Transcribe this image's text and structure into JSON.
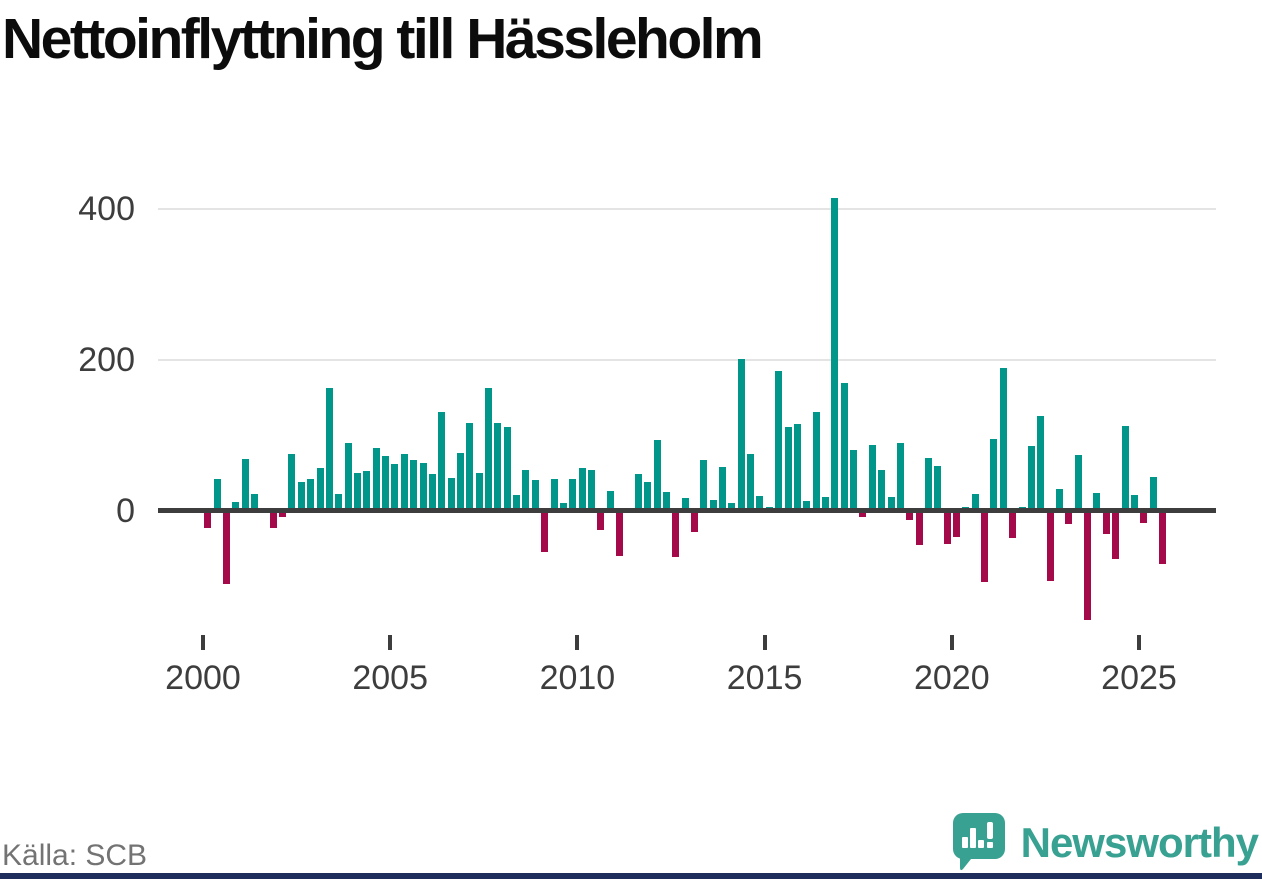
{
  "title": "Nettoinflyttning till Hässleholm",
  "source": {
    "label": "Källa: SCB"
  },
  "branding": {
    "name": "Newsworthy"
  },
  "colors": {
    "positive_bar": "#00968a",
    "negative_bar": "#a40a4a",
    "brand_teal": "#38a191",
    "footer_strip_navy": "#1f2d5c",
    "axis_text": "#3d3d3d",
    "gridline": "#e4e4e4",
    "title_text": "#0c0c0c",
    "source_text": "#737373"
  },
  "chart_data": {
    "type": "bar",
    "title": "Nettoinflyttning till Hässleholm",
    "xlabel": "",
    "ylabel": "",
    "x_unit": "quarter",
    "grid": "horizontal",
    "legend": "none",
    "ylim": [
      -150,
      430
    ],
    "yticks": [
      0,
      200,
      400
    ],
    "xticks": [
      2000,
      2005,
      2010,
      2015,
      2020,
      2025
    ],
    "positive_color": "#00968a",
    "negative_color": "#a40a4a",
    "values_by_year": [
      {
        "year": 2000,
        "q": [
          -22,
          43,
          -96,
          12
        ]
      },
      {
        "year": 2001,
        "q": [
          69,
          23,
          4,
          -23
        ]
      },
      {
        "year": 2002,
        "q": [
          -8,
          76,
          39,
          43
        ]
      },
      {
        "year": 2003,
        "q": [
          57,
          163,
          22,
          90
        ]
      },
      {
        "year": 2004,
        "q": [
          51,
          53,
          83,
          73
        ]
      },
      {
        "year": 2005,
        "q": [
          62,
          76,
          68,
          64
        ]
      },
      {
        "year": 2006,
        "q": [
          49,
          131,
          44,
          77
        ]
      },
      {
        "year": 2007,
        "q": [
          116,
          51,
          163,
          117
        ]
      },
      {
        "year": 2008,
        "q": [
          111,
          21,
          54,
          41
        ]
      },
      {
        "year": 2009,
        "q": [
          -54,
          43,
          10,
          43
        ]
      },
      {
        "year": 2010,
        "q": [
          57,
          54,
          -25,
          26
        ]
      },
      {
        "year": 2011,
        "q": [
          -60,
          0,
          49,
          38
        ]
      },
      {
        "year": 2012,
        "q": [
          94,
          25,
          -61,
          17
        ]
      },
      {
        "year": 2013,
        "q": [
          -28,
          67,
          14,
          59
        ]
      },
      {
        "year": 2014,
        "q": [
          10,
          201,
          75,
          20
        ]
      },
      {
        "year": 2015,
        "q": [
          6,
          186,
          111,
          115
        ]
      },
      {
        "year": 2016,
        "q": [
          13,
          131,
          18,
          414
        ]
      },
      {
        "year": 2017,
        "q": [
          170,
          81,
          -8,
          87
        ]
      },
      {
        "year": 2018,
        "q": [
          54,
          19,
          90,
          -12
        ]
      },
      {
        "year": 2019,
        "q": [
          -45,
          70,
          60,
          -43
        ]
      },
      {
        "year": 2020,
        "q": [
          -35,
          5,
          23,
          -94
        ]
      },
      {
        "year": 2021,
        "q": [
          95,
          190,
          -36,
          6
        ]
      },
      {
        "year": 2022,
        "q": [
          86,
          126,
          -92,
          29
        ]
      },
      {
        "year": 2023,
        "q": [
          -17,
          74,
          -144,
          24
        ]
      },
      {
        "year": 2024,
        "q": [
          -30,
          -64,
          113,
          21
        ]
      },
      {
        "year": 2025,
        "q": [
          -16,
          45,
          -70
        ]
      }
    ]
  }
}
